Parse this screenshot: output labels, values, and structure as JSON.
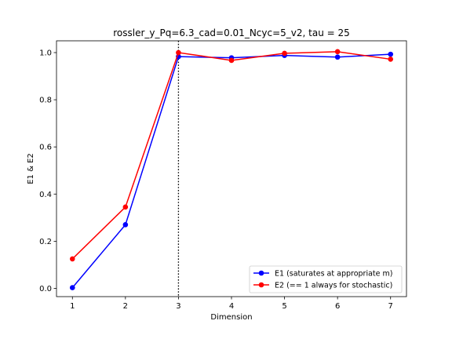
{
  "chart_data": {
    "type": "line",
    "title": "rossler_y_Pq=6.3_cad=0.01_Ncyc=5_v2, tau = 25",
    "xlabel": "Dimension",
    "ylabel": "E1 & E2",
    "x": [
      1,
      2,
      3,
      4,
      5,
      6,
      7
    ],
    "xlim": [
      0.7,
      7.3
    ],
    "ylim": [
      -0.035,
      1.05
    ],
    "xticks": [
      1,
      2,
      3,
      4,
      5,
      6,
      7
    ],
    "yticks": [
      0.0,
      0.2,
      0.4,
      0.6,
      0.8,
      1.0
    ],
    "ytick_labels": [
      "0.0",
      "0.2",
      "0.4",
      "0.6",
      "0.8",
      "1.0"
    ],
    "vline": {
      "x": 3,
      "style": "dotted",
      "color": "#000000"
    },
    "legend_position": "lower-right",
    "series": [
      {
        "name": "E1 (saturates at appropriate m)",
        "color": "#0000ff",
        "values": [
          0.003,
          0.27,
          0.983,
          0.978,
          0.988,
          0.981,
          0.993
        ]
      },
      {
        "name": "E2 (== 1 always for stochastic)",
        "color": "#ff0000",
        "values": [
          0.125,
          0.345,
          1.0,
          0.967,
          0.997,
          1.004,
          0.972
        ]
      }
    ]
  }
}
